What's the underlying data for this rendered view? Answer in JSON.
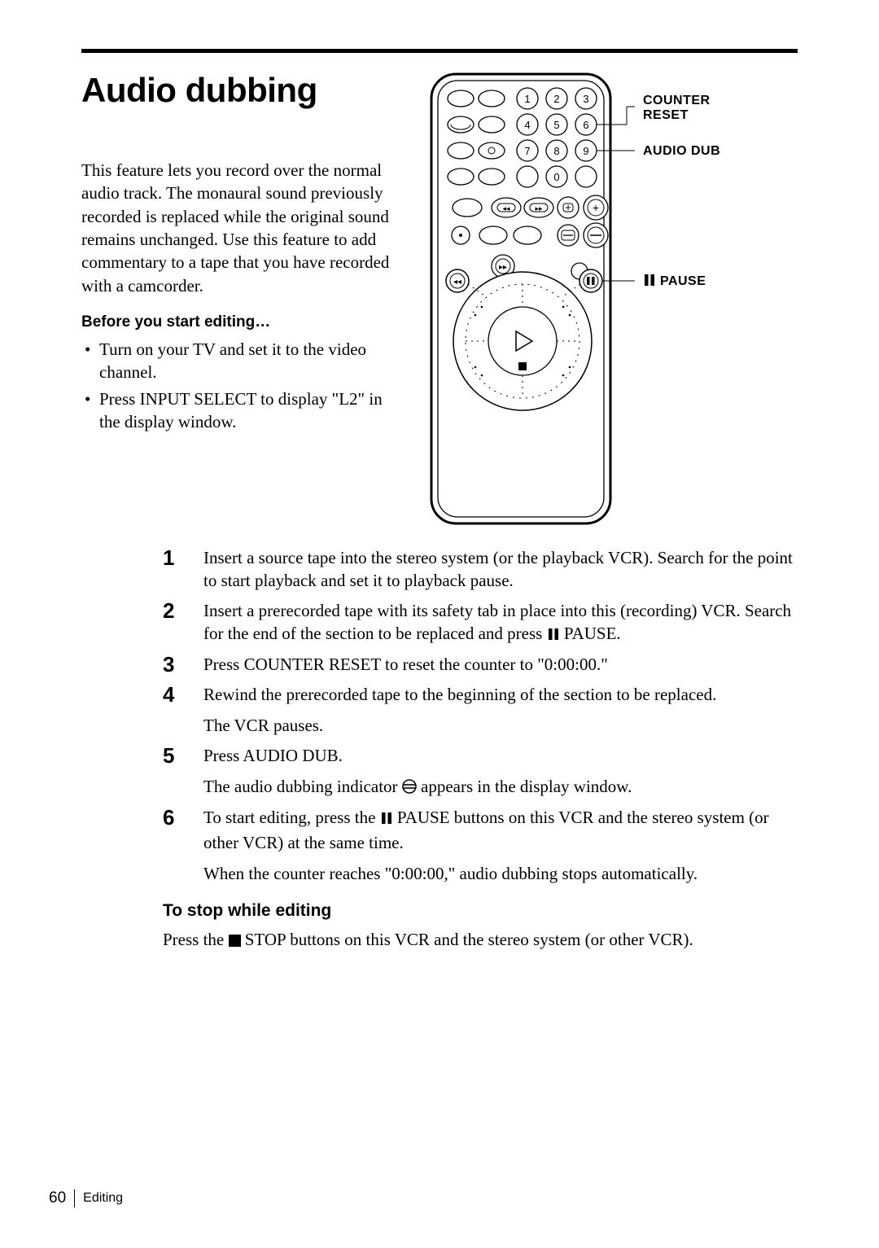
{
  "title": "Audio dubbing",
  "intro": "This feature lets you record over the normal audio track.  The monaural sound previously recorded is replaced while the original sound remains unchanged.  Use this feature to add commentary to a tape that you have recorded with a camcorder.",
  "before_heading": "Before you start editing…",
  "before_bullets": [
    "Turn on your TV and set it to the video channel.",
    "Press INPUT SELECT to display \"L2\" in the display window."
  ],
  "remote": {
    "labels": {
      "counter_reset": "COUNTER RESET",
      "audio_dub": "AUDIO DUB",
      "pause": "PAUSE"
    },
    "pause_glyph": "❚❚",
    "numbers": [
      "1",
      "2",
      "3",
      "4",
      "5",
      "6",
      "7",
      "8",
      "9",
      "0"
    ],
    "colors": {
      "outline": "#000000",
      "fill": "#ffffff",
      "line_width_outer": 3,
      "line_width_inner": 1.3,
      "label_line_width": 1
    }
  },
  "steps": [
    {
      "n": "1",
      "paras": [
        "Insert a source tape into the stereo system (or the playback VCR). Search for the point to start playback and set it to playback pause."
      ]
    },
    {
      "n": "2",
      "paras": [
        "Insert a prerecorded tape with its safety tab in place into this (recording) VCR.  Search for the end of the section to be replaced and press {PAUSE} PAUSE."
      ]
    },
    {
      "n": "3",
      "paras": [
        "Press COUNTER RESET to reset the counter to \"0:00:00.\""
      ]
    },
    {
      "n": "4",
      "paras": [
        "Rewind the prerecorded tape to the beginning of the section to be replaced.",
        "The VCR pauses."
      ]
    },
    {
      "n": "5",
      "paras": [
        "Press AUDIO DUB.",
        "The audio dubbing indicator  {DUBIND}  appears in the display window."
      ]
    },
    {
      "n": "6",
      "paras": [
        "To start editing, press the {PAUSE} PAUSE buttons on this VCR and the stereo system (or other VCR) at the same time.",
        "When the counter reaches \"0:00:00,\" audio dubbing stops automatically."
      ]
    }
  ],
  "stop_heading": "To stop while editing",
  "stop_text": "Press the {STOP} STOP buttons on this VCR and the stereo system (or other VCR).",
  "footer": {
    "page": "60",
    "section": "Editing"
  },
  "icons": {
    "pause_svg": "<svg width='16' height='16' viewBox='0 0 16 16'><rect x='2' y='1' width='4.5' height='14' fill='#000'/><rect x='9.5' y='1' width='4.5' height='14' fill='#000'/></svg>",
    "stop_svg": "<svg width='15' height='15' viewBox='0 0 15 15'><rect x='0' y='0' width='15' height='15' fill='#000'/></svg>",
    "dubind_svg": "<svg width='18' height='18' viewBox='0 0 18 18'><circle cx='9' cy='9' r='8' fill='none' stroke='#000' stroke-width='1.6'/><line x1='2' y1='7' x2='16' y2='7' stroke='#000' stroke-width='1.6'/><line x1='2' y1='11' x2='16' y2='11' stroke='#000' stroke-width='1.6'/></svg>"
  }
}
